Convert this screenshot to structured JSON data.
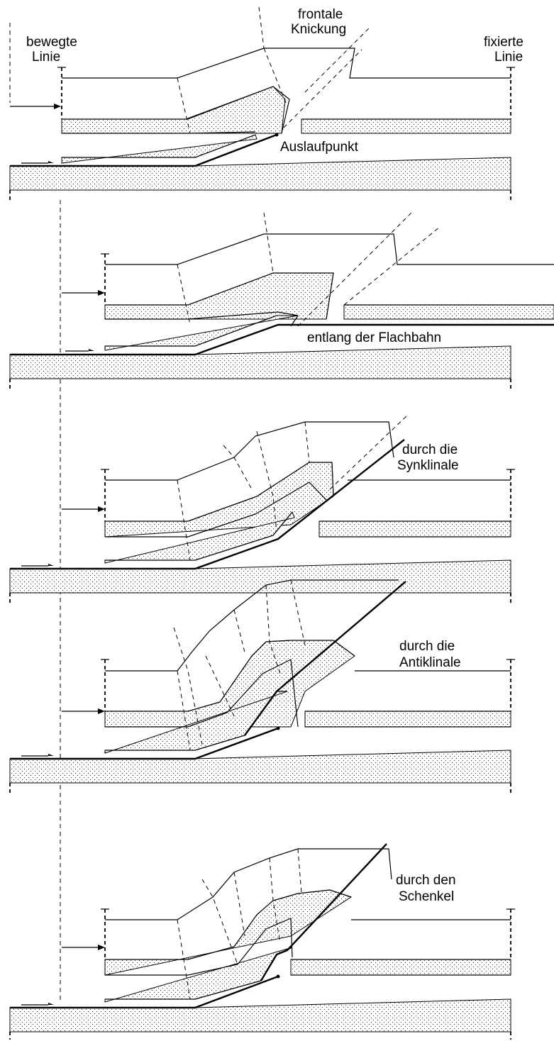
{
  "labels": {
    "moving_line": [
      "bewegte",
      "Linie"
    ],
    "frontal_kink": [
      "frontale",
      "Knickung"
    ],
    "fixed_line": [
      "fixierte",
      "Linie"
    ],
    "run_out_point": "Auslaufpunkt"
  },
  "panels": [
    {
      "label": [
        "Auslaufpunkt"
      ]
    },
    {
      "label": [
        "entlang der Flachbahn"
      ]
    },
    {
      "label": [
        "durch die",
        "Synklinale"
      ]
    },
    {
      "label": [
        "durch die",
        "Antiklinale"
      ]
    },
    {
      "label": [
        "durch den",
        "Schenkel"
      ]
    }
  ]
}
